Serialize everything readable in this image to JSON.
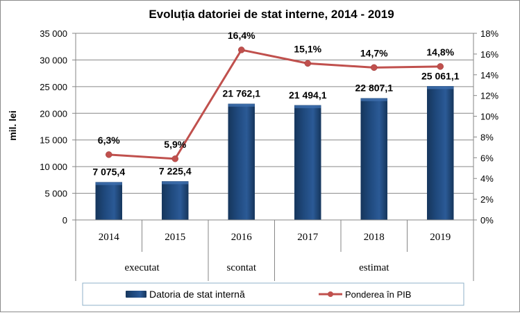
{
  "chart_data": {
    "type": "bar",
    "title": "Evoluția datoriei de stat interne, 2014 - 2019",
    "ylabel": "mil. lei",
    "categories": [
      "2014",
      "2015",
      "2016",
      "2017",
      "2018",
      "2019"
    ],
    "category_groups": [
      {
        "label": "executat",
        "span": 2
      },
      {
        "label": "scontat",
        "span": 1
      },
      {
        "label": "estimat",
        "span": 3
      }
    ],
    "ylim": [
      0,
      35000
    ],
    "y2lim": [
      0,
      18
    ],
    "yticks": [
      "0",
      "5 000",
      "10 000",
      "15 000",
      "20 000",
      "25 000",
      "30 000",
      "35 000"
    ],
    "y2ticks": [
      "0%",
      "2%",
      "4%",
      "6%",
      "8%",
      "10%",
      "12%",
      "14%",
      "16%",
      "18%"
    ],
    "series": [
      {
        "name": "Datoria de stat internă",
        "kind": "bar",
        "axis": "left",
        "color": "#1f497d",
        "values": [
          7075.4,
          7225.4,
          21762.1,
          21494.1,
          22807.1,
          25061.1
        ],
        "labels": [
          "7 075,4",
          "7 225,4",
          "21 762,1",
          "21 494,1",
          "22 807,1",
          "25 061,1"
        ]
      },
      {
        "name": "Ponderea în PIB",
        "kind": "line",
        "axis": "right",
        "color": "#c0504d",
        "values": [
          6.3,
          5.9,
          16.4,
          15.1,
          14.7,
          14.8
        ],
        "labels": [
          "6,3%",
          "5,9%",
          "16,4%",
          "15,1%",
          "14,7%",
          "14,8%"
        ]
      }
    ],
    "grid": true,
    "legend_position": "bottom"
  }
}
